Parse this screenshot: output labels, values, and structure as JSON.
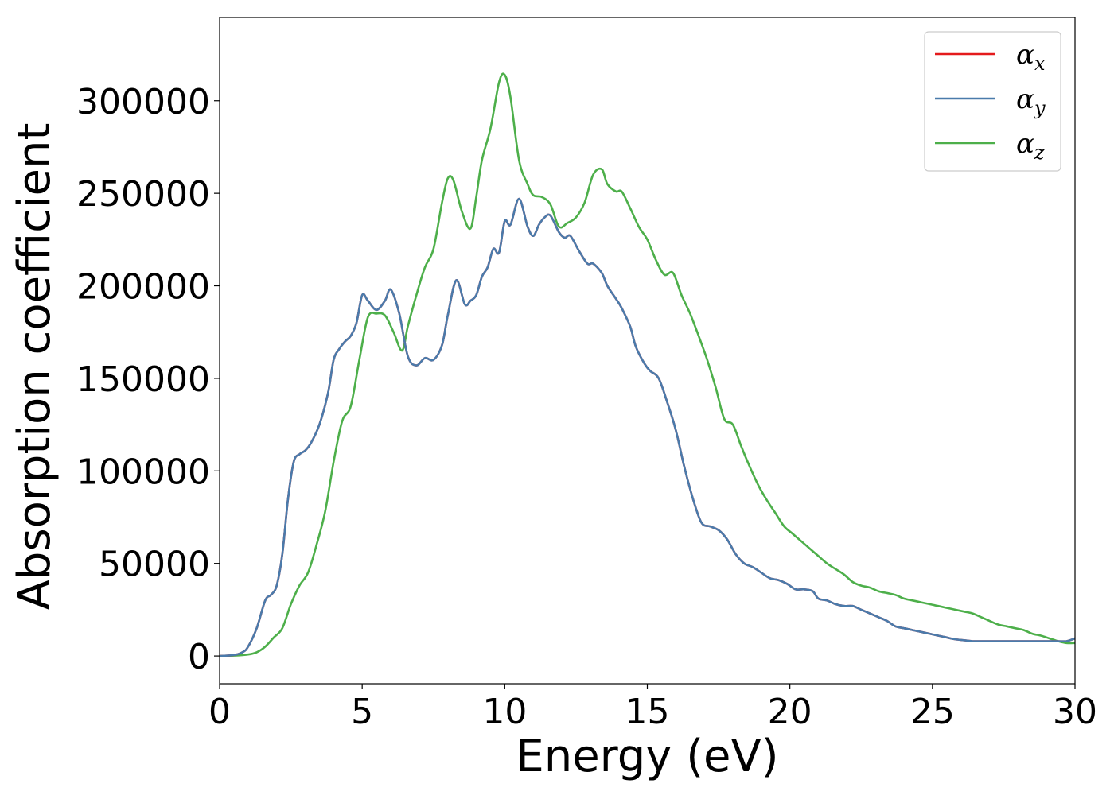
{
  "chart_data": {
    "type": "line",
    "title": "",
    "xlabel": "Energy (eV)",
    "ylabel": "Absorption coefficient",
    "xlim": [
      0,
      30
    ],
    "ylim": [
      -15000,
      345000
    ],
    "xticks": [
      0,
      5,
      10,
      15,
      20,
      25,
      30
    ],
    "yticks": [
      0,
      50000,
      100000,
      150000,
      200000,
      250000,
      300000
    ],
    "grid": false,
    "legend_position": "top-right",
    "series": [
      {
        "name": "α",
        "subscript": "x",
        "color": "#e41a1c",
        "x": [
          0,
          0.5,
          0.8,
          1.0,
          1.3,
          1.6,
          1.8,
          2.0,
          2.2,
          2.4,
          2.6,
          2.8,
          3.0,
          3.2,
          3.5,
          3.8,
          4.0,
          4.2,
          4.4,
          4.6,
          4.8,
          5.0,
          5.2,
          5.5,
          5.8,
          6.0,
          6.3,
          6.6,
          6.9,
          7.2,
          7.5,
          7.8,
          8.0,
          8.3,
          8.6,
          8.8,
          9.0,
          9.2,
          9.4,
          9.6,
          9.8,
          10.0,
          10.2,
          10.5,
          10.8,
          11.0,
          11.2,
          11.4,
          11.6,
          11.9,
          12.1,
          12.3,
          12.6,
          12.9,
          13.1,
          13.4,
          13.6,
          13.9,
          14.1,
          14.4,
          14.6,
          14.9,
          15.1,
          15.4,
          15.7,
          16.0,
          16.3,
          16.6,
          16.9,
          17.2,
          17.5,
          17.8,
          18.1,
          18.4,
          18.7,
          19.0,
          19.3,
          19.6,
          19.9,
          20.2,
          20.5,
          20.8,
          21.0,
          21.3,
          21.6,
          21.9,
          22.2,
          22.5,
          22.8,
          23.1,
          23.4,
          23.7,
          24.0,
          24.3,
          24.6,
          24.9,
          25.2,
          25.5,
          25.8,
          26.1,
          26.4,
          26.7,
          27.0,
          27.3,
          27.6,
          27.9,
          28.2,
          28.5,
          28.8,
          29.1,
          29.4,
          29.7,
          30.0
        ],
        "y": [
          0,
          500,
          2000,
          5000,
          15000,
          30000,
          33000,
          38000,
          55000,
          85000,
          105000,
          109000,
          111000,
          115000,
          125000,
          142000,
          160000,
          166000,
          170000,
          173000,
          180000,
          195000,
          192000,
          187000,
          192000,
          198000,
          185000,
          162000,
          157000,
          161000,
          160000,
          168000,
          184000,
          203000,
          190000,
          192000,
          195000,
          205000,
          210000,
          220000,
          218000,
          235000,
          233000,
          247000,
          232000,
          227000,
          233000,
          237000,
          238000,
          229000,
          226000,
          227000,
          219000,
          212000,
          212000,
          207000,
          200000,
          193000,
          188000,
          178000,
          167000,
          158000,
          154000,
          150000,
          137000,
          122000,
          102000,
          85000,
          72000,
          70000,
          68000,
          63000,
          55000,
          50000,
          48000,
          45000,
          42000,
          41000,
          39000,
          36000,
          36000,
          35000,
          31000,
          30000,
          28000,
          27000,
          27000,
          25000,
          23000,
          21000,
          19000,
          16000,
          15000,
          14000,
          13000,
          12000,
          11000,
          10000,
          9000,
          8500,
          8000,
          8000,
          8000,
          8000,
          8000,
          8000,
          8000,
          8000,
          8000,
          8000,
          8000,
          8000,
          9500
        ]
      },
      {
        "name": "α",
        "subscript": "y",
        "color": "#4a7bab",
        "x": [
          0,
          0.5,
          0.8,
          1.0,
          1.3,
          1.6,
          1.8,
          2.0,
          2.2,
          2.4,
          2.6,
          2.8,
          3.0,
          3.2,
          3.5,
          3.8,
          4.0,
          4.2,
          4.4,
          4.6,
          4.8,
          5.0,
          5.2,
          5.5,
          5.8,
          6.0,
          6.3,
          6.6,
          6.9,
          7.2,
          7.5,
          7.8,
          8.0,
          8.3,
          8.6,
          8.8,
          9.0,
          9.2,
          9.4,
          9.6,
          9.8,
          10.0,
          10.2,
          10.5,
          10.8,
          11.0,
          11.2,
          11.4,
          11.6,
          11.9,
          12.1,
          12.3,
          12.6,
          12.9,
          13.1,
          13.4,
          13.6,
          13.9,
          14.1,
          14.4,
          14.6,
          14.9,
          15.1,
          15.4,
          15.7,
          16.0,
          16.3,
          16.6,
          16.9,
          17.2,
          17.5,
          17.8,
          18.1,
          18.4,
          18.7,
          19.0,
          19.3,
          19.6,
          19.9,
          20.2,
          20.5,
          20.8,
          21.0,
          21.3,
          21.6,
          21.9,
          22.2,
          22.5,
          22.8,
          23.1,
          23.4,
          23.7,
          24.0,
          24.3,
          24.6,
          24.9,
          25.2,
          25.5,
          25.8,
          26.1,
          26.4,
          26.7,
          27.0,
          27.3,
          27.6,
          27.9,
          28.2,
          28.5,
          28.8,
          29.1,
          29.4,
          29.7,
          30.0
        ],
        "y": [
          0,
          500,
          2000,
          5000,
          15000,
          30000,
          33000,
          38000,
          55000,
          85000,
          105000,
          109000,
          111000,
          115000,
          125000,
          142000,
          160000,
          166000,
          170000,
          173000,
          180000,
          195000,
          192000,
          187000,
          192000,
          198000,
          185000,
          162000,
          157000,
          161000,
          160000,
          168000,
          184000,
          203000,
          190000,
          192000,
          195000,
          205000,
          210000,
          220000,
          218000,
          235000,
          233000,
          247000,
          232000,
          227000,
          233000,
          237000,
          238000,
          229000,
          226000,
          227000,
          219000,
          212000,
          212000,
          207000,
          200000,
          193000,
          188000,
          178000,
          167000,
          158000,
          154000,
          150000,
          137000,
          122000,
          102000,
          85000,
          72000,
          70000,
          68000,
          63000,
          55000,
          50000,
          48000,
          45000,
          42000,
          41000,
          39000,
          36000,
          36000,
          35000,
          31000,
          30000,
          28000,
          27000,
          27000,
          25000,
          23000,
          21000,
          19000,
          16000,
          15000,
          14000,
          13000,
          12000,
          11000,
          10000,
          9000,
          8500,
          8000,
          8000,
          8000,
          8000,
          8000,
          8000,
          8000,
          8000,
          8000,
          8000,
          8000,
          8000,
          9500
        ]
      },
      {
        "name": "α",
        "subscript": "z",
        "color": "#4daf4a",
        "x": [
          0,
          0.5,
          1.0,
          1.3,
          1.6,
          1.9,
          2.2,
          2.5,
          2.8,
          3.1,
          3.4,
          3.7,
          4.0,
          4.3,
          4.6,
          4.9,
          5.2,
          5.5,
          5.8,
          6.1,
          6.4,
          6.6,
          6.9,
          7.2,
          7.5,
          7.8,
          8.0,
          8.2,
          8.5,
          8.8,
          9.0,
          9.2,
          9.5,
          9.8,
          10.0,
          10.2,
          10.5,
          10.8,
          11.0,
          11.3,
          11.6,
          11.9,
          12.2,
          12.5,
          12.8,
          13.1,
          13.4,
          13.6,
          13.9,
          14.1,
          14.4,
          14.7,
          15.0,
          15.3,
          15.6,
          15.9,
          16.2,
          16.5,
          16.8,
          17.1,
          17.4,
          17.7,
          18.0,
          18.3,
          18.6,
          18.9,
          19.2,
          19.5,
          19.8,
          20.1,
          20.4,
          20.7,
          21.0,
          21.3,
          21.6,
          21.9,
          22.2,
          22.5,
          22.8,
          23.1,
          23.4,
          23.7,
          24.0,
          24.3,
          24.6,
          24.9,
          25.2,
          25.5,
          25.8,
          26.1,
          26.4,
          26.7,
          27.0,
          27.3,
          27.6,
          27.9,
          28.2,
          28.5,
          28.8,
          29.1,
          29.4,
          29.7,
          30.0
        ],
        "y": [
          0,
          200,
          800,
          2000,
          5000,
          10000,
          15000,
          28000,
          38000,
          45000,
          60000,
          78000,
          105000,
          127000,
          135000,
          160000,
          183000,
          185000,
          184000,
          175000,
          165000,
          178000,
          195000,
          210000,
          220000,
          245000,
          258000,
          257000,
          240000,
          231000,
          248000,
          268000,
          285000,
          310000,
          314000,
          302000,
          268000,
          255000,
          249000,
          248000,
          244000,
          232000,
          234000,
          237000,
          245000,
          260000,
          263000,
          255000,
          251000,
          251000,
          242000,
          232000,
          225000,
          214000,
          206000,
          207000,
          195000,
          185000,
          173000,
          160000,
          145000,
          128000,
          125000,
          113000,
          102000,
          92000,
          84000,
          77000,
          70000,
          66000,
          62000,
          58000,
          54000,
          50000,
          47000,
          44000,
          40000,
          38000,
          37000,
          35000,
          34000,
          33000,
          31000,
          30000,
          29000,
          28000,
          27000,
          26000,
          25000,
          24000,
          23000,
          21000,
          19000,
          17000,
          16000,
          15000,
          14000,
          12000,
          11000,
          9500,
          8000,
          7000,
          7000
        ]
      }
    ]
  }
}
